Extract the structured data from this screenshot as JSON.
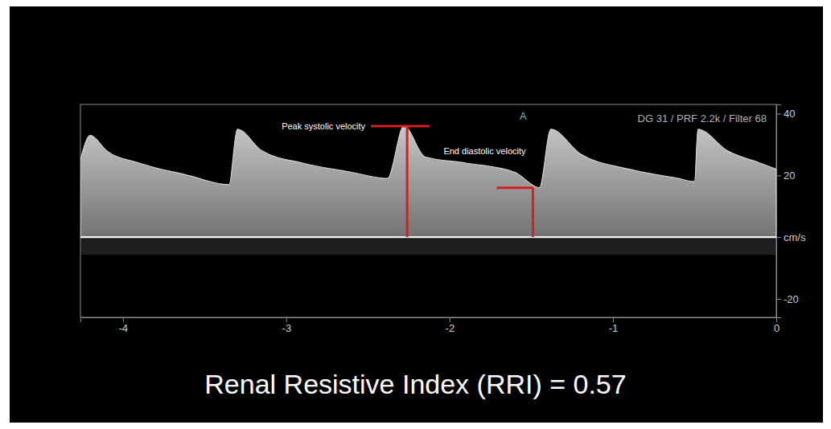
{
  "chart_data": {
    "type": "area",
    "x": [
      -4.26,
      -4.2,
      -4.1,
      -3.9,
      -3.6,
      -3.35,
      -3.3,
      -3.15,
      -2.9,
      -2.6,
      -2.38,
      -2.28,
      -2.15,
      -1.9,
      -1.6,
      -1.45,
      -1.38,
      -1.2,
      -0.9,
      -0.6,
      -0.5,
      -0.48,
      -0.3,
      -0.1,
      0
    ],
    "values": [
      25,
      33,
      28,
      24,
      20,
      17,
      35,
      28,
      24,
      21,
      19,
      36,
      26,
      24,
      21,
      16,
      35,
      27,
      22,
      19,
      18,
      35,
      28,
      24,
      22
    ],
    "color": "#d0d0d0",
    "xlim": [
      -4.26,
      0
    ],
    "xticks": [
      -4,
      -3,
      -2,
      -1,
      0
    ],
    "ylim": [
      -26,
      43
    ],
    "yticks": [
      -20,
      {
        "value": 0,
        "label": "cm/s"
      },
      20,
      40
    ],
    "header": "DG 31 / PRF 2.2k / Filter 68",
    "annotations": [
      {
        "text": "Peak systolic velocity",
        "x": -2.26,
        "value": 36,
        "marker": "bracket"
      },
      {
        "text": "End diastolic velocity",
        "x": -1.49,
        "value": 16,
        "marker": "bracket"
      },
      {
        "text": "A",
        "x": -1.55,
        "value": 38
      }
    ],
    "caption": "Renal Resistive Index (RRI) = 0.57"
  }
}
